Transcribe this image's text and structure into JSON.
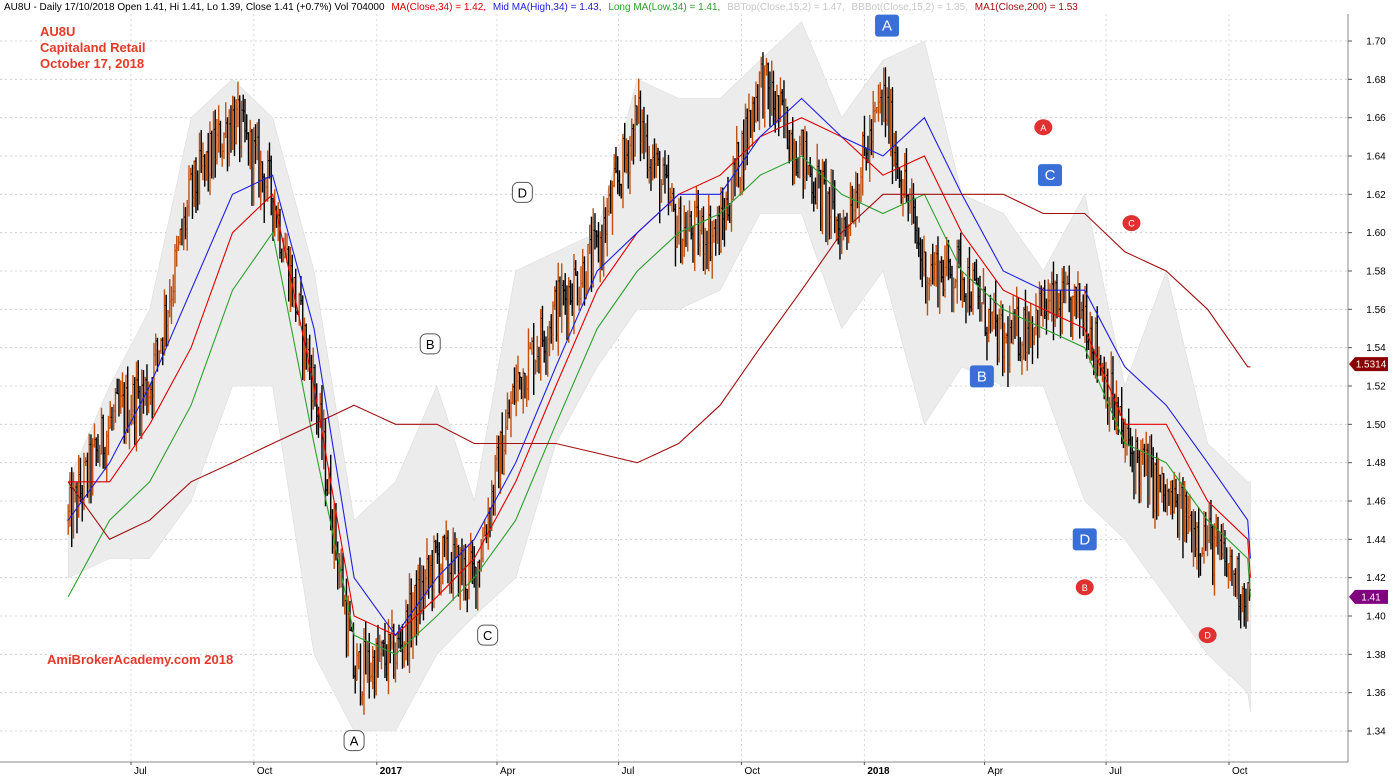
{
  "header": {
    "text": "AU8U - Daily 17/10/2018 Open 1.41, Hi 1.41, Lo 1.39, Close 1.41 (+0.7%) Vol 704000",
    "ma_close": "MA(Close,34) = 1.42,",
    "mid_ma": "Mid MA(High,34) = 1.43,",
    "long_ma": "Long MA(Low,34) = 1.41,",
    "bbtop": "BBTop(Close,15,2) = 1.47,",
    "bbbot": "BBBot(Close,15,2) = 1.35,",
    "ma200": "MA1(Close,200) = 1.53"
  },
  "annotation": {
    "ticker": "AU8U",
    "name": "Capitaland Retail",
    "date": "October 17, 2018",
    "watermark": "AmiBrokerAcademy.com  2018"
  },
  "colors": {
    "ma_close": "#e00000",
    "mid_ma": "#1f1fe0",
    "long_ma": "#2ca02c",
    "ma200": "#a01010",
    "band_fill": "#ececec",
    "up_bar": "#c05010",
    "down_bar": "#000000",
    "annotation_text": "#e43a2a",
    "marker_blue": "#3b6fd8",
    "marker_red": "#e03030",
    "badge_ma200": "#8b0000",
    "badge_price": "#800080"
  },
  "chart_data": {
    "type": "line",
    "ylim": [
      1.33,
      1.71
    ],
    "y_ticks": [
      "1.34",
      "1.36",
      "1.38",
      "1.40",
      "1.42",
      "1.44",
      "1.46",
      "1.48",
      "1.50",
      "1.52",
      "1.54",
      "1.56",
      "1.58",
      "1.60",
      "1.62",
      "1.64",
      "1.66",
      "1.68",
      "1.70"
    ],
    "x_axis_labels": [
      "Jul",
      "Oct",
      "2017",
      "Apr",
      "Jul",
      "Oct",
      "2018",
      "Apr",
      "Jul",
      "Oct"
    ],
    "x_axis_dates": [
      "2016-07",
      "2016-10",
      "2017-01",
      "2017-04",
      "2017-07",
      "2017-10",
      "2018-01",
      "2018-04",
      "2018-07",
      "2018-10"
    ],
    "price_range_dates": [
      "2016-05",
      "2018-10-17"
    ],
    "last_close": "1.41",
    "ma200_last": "1.5314",
    "series": [
      {
        "name": "MA(Close,34)",
        "key": "ma_close",
        "points": [
          [
            "2016-05",
            1.47
          ],
          [
            "2016-06",
            1.47
          ],
          [
            "2016-07",
            1.5
          ],
          [
            "2016-08",
            1.54
          ],
          [
            "2016-09",
            1.6
          ],
          [
            "2016-10",
            1.62
          ],
          [
            "2016-11",
            1.52
          ],
          [
            "2016-12",
            1.4
          ],
          [
            "2017-01",
            1.39
          ],
          [
            "2017-02",
            1.41
          ],
          [
            "2017-03",
            1.43
          ],
          [
            "2017-04",
            1.47
          ],
          [
            "2017-05",
            1.52
          ],
          [
            "2017-06",
            1.57
          ],
          [
            "2017-07",
            1.6
          ],
          [
            "2017-08",
            1.62
          ],
          [
            "2017-09",
            1.63
          ],
          [
            "2017-10",
            1.65
          ],
          [
            "2017-11",
            1.66
          ],
          [
            "2017-12",
            1.65
          ],
          [
            "2018-01",
            1.63
          ],
          [
            "2018-02",
            1.64
          ],
          [
            "2018-03",
            1.6
          ],
          [
            "2018-04",
            1.57
          ],
          [
            "2018-05",
            1.56
          ],
          [
            "2018-06",
            1.55
          ],
          [
            "2018-07",
            1.5
          ],
          [
            "2018-08",
            1.5
          ],
          [
            "2018-09",
            1.46
          ],
          [
            "2018-10",
            1.44
          ],
          [
            "2018-10-17",
            1.42
          ]
        ]
      },
      {
        "name": "Mid MA(High,34)",
        "key": "mid_ma",
        "points": [
          [
            "2016-05",
            1.45
          ],
          [
            "2016-06",
            1.48
          ],
          [
            "2016-07",
            1.52
          ],
          [
            "2016-08",
            1.57
          ],
          [
            "2016-09",
            1.62
          ],
          [
            "2016-10",
            1.63
          ],
          [
            "2016-11",
            1.55
          ],
          [
            "2016-12",
            1.42
          ],
          [
            "2017-01",
            1.39
          ],
          [
            "2017-02",
            1.42
          ],
          [
            "2017-03",
            1.44
          ],
          [
            "2017-04",
            1.48
          ],
          [
            "2017-05",
            1.53
          ],
          [
            "2017-06",
            1.58
          ],
          [
            "2017-07",
            1.6
          ],
          [
            "2017-08",
            1.62
          ],
          [
            "2017-09",
            1.62
          ],
          [
            "2017-10",
            1.65
          ],
          [
            "2017-11",
            1.67
          ],
          [
            "2017-12",
            1.65
          ],
          [
            "2018-01",
            1.64
          ],
          [
            "2018-02",
            1.66
          ],
          [
            "2018-03",
            1.62
          ],
          [
            "2018-04",
            1.58
          ],
          [
            "2018-05",
            1.57
          ],
          [
            "2018-06",
            1.57
          ],
          [
            "2018-07",
            1.53
          ],
          [
            "2018-08",
            1.51
          ],
          [
            "2018-09",
            1.48
          ],
          [
            "2018-10",
            1.45
          ],
          [
            "2018-10-17",
            1.43
          ]
        ]
      },
      {
        "name": "Long MA(Low,34)",
        "key": "long_ma",
        "points": [
          [
            "2016-05",
            1.41
          ],
          [
            "2016-06",
            1.45
          ],
          [
            "2016-07",
            1.47
          ],
          [
            "2016-08",
            1.51
          ],
          [
            "2016-09",
            1.57
          ],
          [
            "2016-10",
            1.6
          ],
          [
            "2016-11",
            1.49
          ],
          [
            "2016-12",
            1.39
          ],
          [
            "2017-01",
            1.38
          ],
          [
            "2017-02",
            1.4
          ],
          [
            "2017-03",
            1.42
          ],
          [
            "2017-04",
            1.45
          ],
          [
            "2017-05",
            1.5
          ],
          [
            "2017-06",
            1.55
          ],
          [
            "2017-07",
            1.58
          ],
          [
            "2017-08",
            1.6
          ],
          [
            "2017-09",
            1.61
          ],
          [
            "2017-10",
            1.63
          ],
          [
            "2017-11",
            1.64
          ],
          [
            "2017-12",
            1.62
          ],
          [
            "2018-01",
            1.61
          ],
          [
            "2018-02",
            1.62
          ],
          [
            "2018-03",
            1.58
          ],
          [
            "2018-04",
            1.56
          ],
          [
            "2018-05",
            1.55
          ],
          [
            "2018-06",
            1.54
          ],
          [
            "2018-07",
            1.49
          ],
          [
            "2018-08",
            1.48
          ],
          [
            "2018-09",
            1.45
          ],
          [
            "2018-10",
            1.43
          ],
          [
            "2018-10-17",
            1.41
          ]
        ]
      },
      {
        "name": "MA1(Close,200)",
        "key": "ma200",
        "points": [
          [
            "2016-05",
            1.47
          ],
          [
            "2016-06",
            1.44
          ],
          [
            "2016-07",
            1.45
          ],
          [
            "2016-08",
            1.47
          ],
          [
            "2016-09",
            1.48
          ],
          [
            "2016-10",
            1.49
          ],
          [
            "2016-11",
            1.5
          ],
          [
            "2016-12",
            1.51
          ],
          [
            "2017-01",
            1.5
          ],
          [
            "2017-02",
            1.5
          ],
          [
            "2017-03",
            1.49
          ],
          [
            "2017-04",
            1.49
          ],
          [
            "2017-05",
            1.49
          ],
          [
            "2017-06",
            1.485
          ],
          [
            "2017-07",
            1.48
          ],
          [
            "2017-08",
            1.49
          ],
          [
            "2017-09",
            1.51
          ],
          [
            "2017-10",
            1.54
          ],
          [
            "2017-11",
            1.57
          ],
          [
            "2017-12",
            1.6
          ],
          [
            "2018-01",
            1.62
          ],
          [
            "2018-02",
            1.62
          ],
          [
            "2018-03",
            1.62
          ],
          [
            "2018-04",
            1.62
          ],
          [
            "2018-05",
            1.61
          ],
          [
            "2018-06",
            1.61
          ],
          [
            "2018-07",
            1.59
          ],
          [
            "2018-08",
            1.58
          ],
          [
            "2018-09",
            1.56
          ],
          [
            "2018-10",
            1.53
          ],
          [
            "2018-10-17",
            1.53
          ]
        ]
      }
    ],
    "band": {
      "name": "BB(Close,15,2)",
      "upper": [
        [
          "2016-05",
          1.47
        ],
        [
          "2016-06",
          1.52
        ],
        [
          "2016-07",
          1.56
        ],
        [
          "2016-08",
          1.66
        ],
        [
          "2016-09",
          1.68
        ],
        [
          "2016-10",
          1.66
        ],
        [
          "2016-11",
          1.58
        ],
        [
          "2016-12",
          1.45
        ],
        [
          "2017-01",
          1.47
        ],
        [
          "2017-02",
          1.52
        ],
        [
          "2017-03",
          1.46
        ],
        [
          "2017-04",
          1.58
        ],
        [
          "2017-05",
          1.59
        ],
        [
          "2017-06",
          1.6
        ],
        [
          "2017-07",
          1.68
        ],
        [
          "2017-08",
          1.67
        ],
        [
          "2017-09",
          1.67
        ],
        [
          "2017-10",
          1.69
        ],
        [
          "2017-11",
          1.71
        ],
        [
          "2017-12",
          1.66
        ],
        [
          "2018-01",
          1.69
        ],
        [
          "2018-02",
          1.7
        ],
        [
          "2018-03",
          1.62
        ],
        [
          "2018-04",
          1.61
        ],
        [
          "2018-05",
          1.58
        ],
        [
          "2018-06",
          1.62
        ],
        [
          "2018-07",
          1.52
        ],
        [
          "2018-08",
          1.58
        ],
        [
          "2018-09",
          1.49
        ],
        [
          "2018-10",
          1.47
        ],
        [
          "2018-10-17",
          1.47
        ]
      ],
      "lower": [
        [
          "2016-05",
          1.42
        ],
        [
          "2016-06",
          1.43
        ],
        [
          "2016-07",
          1.43
        ],
        [
          "2016-08",
          1.46
        ],
        [
          "2016-09",
          1.52
        ],
        [
          "2016-10",
          1.52
        ],
        [
          "2016-11",
          1.38
        ],
        [
          "2016-12",
          1.34
        ],
        [
          "2017-01",
          1.34
        ],
        [
          "2017-02",
          1.38
        ],
        [
          "2017-03",
          1.4
        ],
        [
          "2017-04",
          1.42
        ],
        [
          "2017-05",
          1.49
        ],
        [
          "2017-06",
          1.53
        ],
        [
          "2017-07",
          1.56
        ],
        [
          "2017-08",
          1.56
        ],
        [
          "2017-09",
          1.57
        ],
        [
          "2017-10",
          1.61
        ],
        [
          "2017-11",
          1.61
        ],
        [
          "2017-12",
          1.55
        ],
        [
          "2018-01",
          1.58
        ],
        [
          "2018-02",
          1.5
        ],
        [
          "2018-03",
          1.53
        ],
        [
          "2018-04",
          1.52
        ],
        [
          "2018-05",
          1.52
        ],
        [
          "2018-06",
          1.46
        ],
        [
          "2018-07",
          1.44
        ],
        [
          "2018-08",
          1.41
        ],
        [
          "2018-09",
          1.38
        ],
        [
          "2018-10",
          1.36
        ],
        [
          "2018-10-17",
          1.35
        ]
      ]
    },
    "price_path": [
      [
        "2016-05",
        1.45
      ],
      [
        "2016-06",
        1.5
      ],
      [
        "2016-07",
        1.52
      ],
      [
        "2016-08",
        1.62
      ],
      [
        "2016-09",
        1.66
      ],
      [
        "2016-10",
        1.62
      ],
      [
        "2016-11",
        1.52
      ],
      [
        "2016-12",
        1.37
      ],
      [
        "2017-01",
        1.38
      ],
      [
        "2017-02",
        1.43
      ],
      [
        "2017-03",
        1.42
      ],
      [
        "2017-04",
        1.52
      ],
      [
        "2017-05",
        1.56
      ],
      [
        "2017-06",
        1.59
      ],
      [
        "2017-07",
        1.66
      ],
      [
        "2017-08",
        1.6
      ],
      [
        "2017-09",
        1.6
      ],
      [
        "2017-10",
        1.68
      ],
      [
        "2017-11",
        1.64
      ],
      [
        "2017-12",
        1.6
      ],
      [
        "2018-01",
        1.67
      ],
      [
        "2018-02",
        1.58
      ],
      [
        "2018-03",
        1.58
      ],
      [
        "2018-04",
        1.54
      ],
      [
        "2018-05",
        1.56
      ],
      [
        "2018-06",
        1.56
      ],
      [
        "2018-07",
        1.49
      ],
      [
        "2018-08",
        1.46
      ],
      [
        "2018-09",
        1.44
      ],
      [
        "2018-10",
        1.41
      ],
      [
        "2018-10-17",
        1.41
      ]
    ],
    "markers": [
      {
        "label": "A",
        "style": "white",
        "date": "2016-12-15",
        "price": 1.335
      },
      {
        "label": "B",
        "style": "white",
        "date": "2017-02-10",
        "price": 1.542
      },
      {
        "label": "C",
        "style": "white",
        "date": "2017-03-25",
        "price": 1.39
      },
      {
        "label": "D",
        "style": "white",
        "date": "2017-04-20",
        "price": 1.621
      },
      {
        "label": "A",
        "style": "blue",
        "date": "2018-01-18",
        "price": 1.708
      },
      {
        "label": "B",
        "style": "blue",
        "date": "2018-03-30",
        "price": 1.525
      },
      {
        "label": "C",
        "style": "blue",
        "date": "2018-05-20",
        "price": 1.63
      },
      {
        "label": "D",
        "style": "blue",
        "date": "2018-06-15",
        "price": 1.44
      },
      {
        "label": "A",
        "style": "red",
        "date": "2018-05-15",
        "price": 1.655
      },
      {
        "label": "B",
        "style": "red",
        "date": "2018-06-15",
        "price": 1.415
      },
      {
        "label": "C",
        "style": "red",
        "date": "2018-07-20",
        "price": 1.605
      },
      {
        "label": "D",
        "style": "red",
        "date": "2018-09-15",
        "price": 1.39
      }
    ]
  }
}
